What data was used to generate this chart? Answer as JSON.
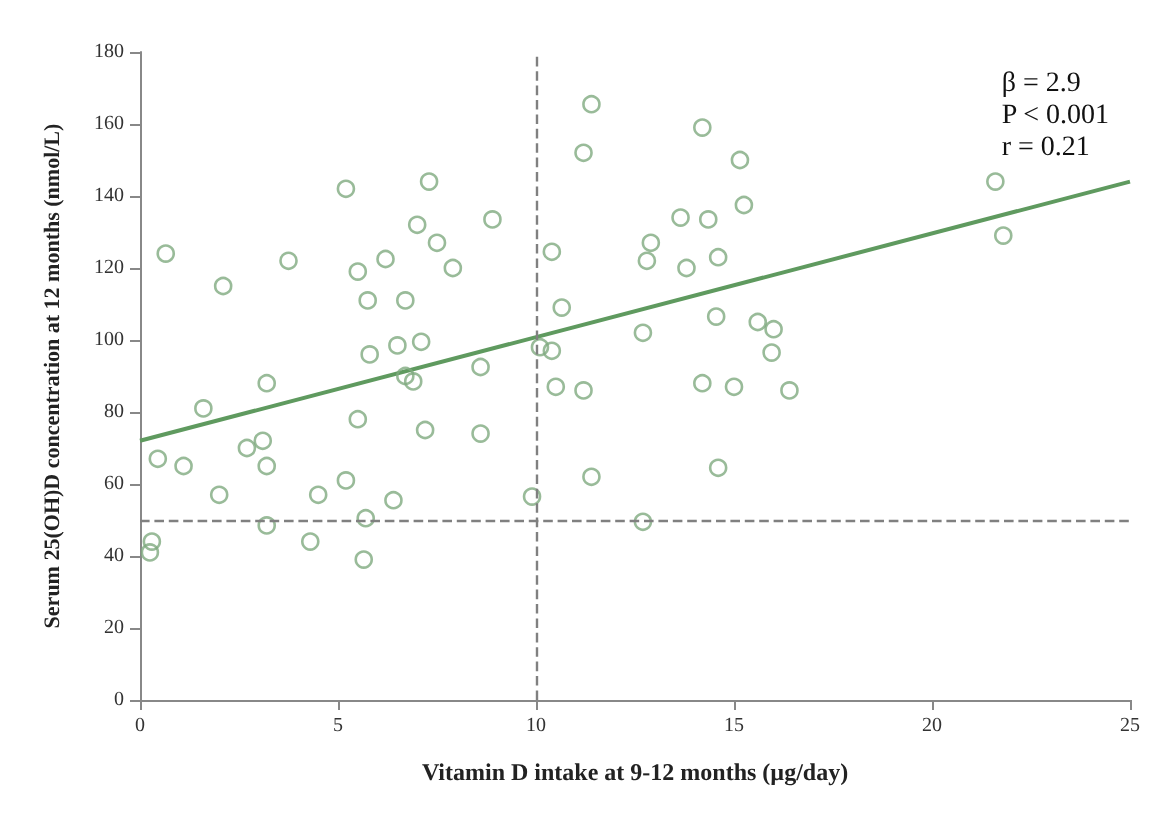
{
  "chart_data": {
    "type": "scatter",
    "xlabel": "Vitamin D intake at 9-12 months (µg/day)",
    "ylabel": "Serum 25(OH)D concentration at 12 months (nmol/L)",
    "xlim": [
      0,
      25
    ],
    "xticks": [
      0,
      5,
      10,
      15,
      20,
      25
    ],
    "ylim": [
      0,
      180
    ],
    "yticks": [
      0,
      20,
      40,
      60,
      80,
      100,
      120,
      140,
      160,
      180
    ],
    "grid": false,
    "annotations": [
      "β = 2.9",
      "P < 0.001",
      "r = 0.21"
    ],
    "ref_lines": [
      {
        "axis": "x",
        "value": 10,
        "color": "#808080",
        "line_style": "dashed"
      },
      {
        "axis": "y",
        "value": 50,
        "color": "#808080",
        "line_style": "dashed"
      }
    ],
    "series": [
      {
        "type": "scatter",
        "color": "#7faa7f",
        "marker": "circle",
        "x": [
          0.3,
          0.25,
          0.45,
          1.1,
          1.6,
          2.0,
          2.7,
          3.1,
          3.2,
          3.2,
          3.2,
          4.3,
          4.5,
          5.2,
          5.5,
          5.7,
          5.65,
          6.4,
          6.7,
          6.9,
          7.2,
          8.6,
          8.6,
          9.9,
          10.5,
          11.2,
          11.4,
          12.7,
          14.6,
          14.2,
          15.0,
          16.4,
          0.65,
          2.1,
          3.75,
          5.2,
          7.3,
          5.5,
          5.75,
          6.2,
          6.7,
          7.0,
          7.5,
          7.9,
          8.9,
          5.8,
          6.5,
          7.1,
          10.4,
          10.65,
          10.1,
          10.4,
          11.2,
          11.4,
          14.2,
          15.15,
          15.25,
          13.65,
          14.35,
          12.9,
          12.8,
          13.8,
          14.6,
          12.7,
          14.55,
          15.6,
          16.0,
          15.95,
          21.6,
          21.8
        ],
        "values": [
          44,
          41,
          67,
          65,
          81,
          57,
          70,
          72,
          88,
          65,
          48.5,
          44,
          57,
          61,
          78,
          50.5,
          39,
          55.5,
          90,
          88.5,
          75,
          74,
          92.5,
          56.5,
          87,
          86,
          62,
          49.5,
          64.5,
          88,
          87,
          86,
          124,
          115,
          122,
          142,
          144,
          119,
          111,
          122.5,
          111,
          132,
          127,
          120,
          133.5,
          96,
          98.5,
          99.5,
          124.5,
          109,
          98,
          97,
          152,
          165.5,
          159,
          150,
          137.5,
          134,
          133.5,
          127,
          122,
          120,
          123,
          102,
          106.5,
          105,
          103,
          96.5,
          144,
          129
        ]
      },
      {
        "type": "line",
        "color": "#5f9a5f",
        "marker": "none",
        "line_style": "solid",
        "x": [
          0,
          25
        ],
        "values": [
          72,
          144
        ]
      }
    ]
  }
}
